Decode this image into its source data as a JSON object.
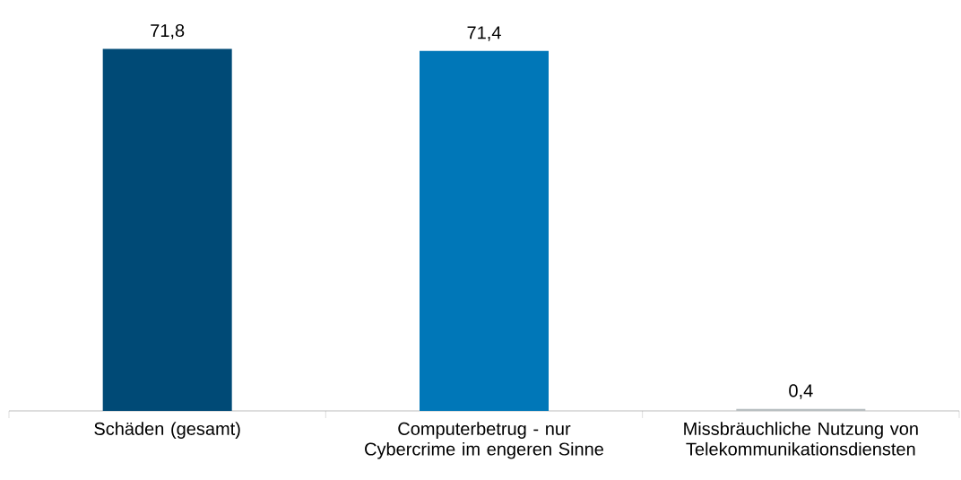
{
  "chart_data": {
    "type": "bar",
    "categories": [
      "Schäden (gesamt)",
      "Computerbetrug - nur Cybercrime im engeren Sinne",
      "Missbräuchliche Nutzung von Telekommunikationsdiensten"
    ],
    "values": [
      71.8,
      71.4,
      0.4
    ],
    "colors": [
      "#004a76",
      "#0077b8",
      "#b9bfc1"
    ],
    "value_labels": [
      "71,8",
      "71,4",
      "0,4"
    ]
  }
}
